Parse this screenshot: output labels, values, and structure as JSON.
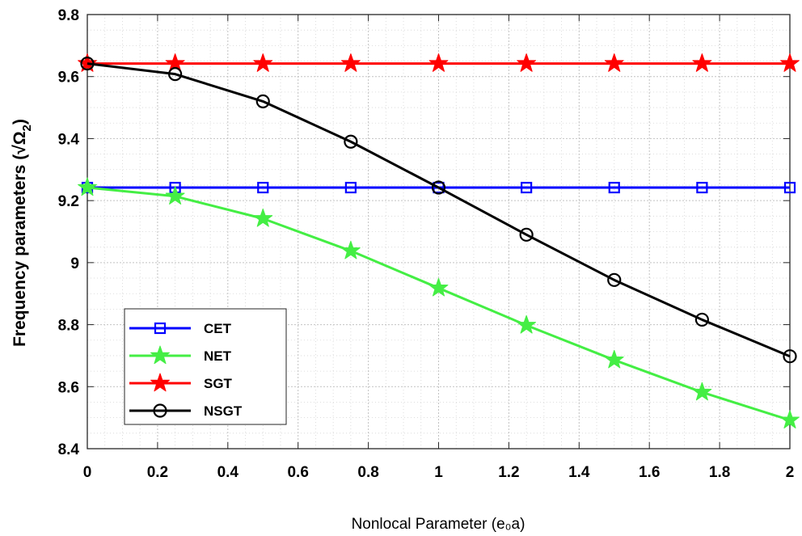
{
  "chart_data": {
    "type": "line",
    "title": "",
    "xlabel": "Nonlocal Parameter (e₀a)",
    "ylabel_main": "Frequency parameters (√Ω",
    "ylabel_sub": "2",
    "ylabel_end": ")",
    "xlim": [
      0,
      2
    ],
    "ylim": [
      8.4,
      9.8
    ],
    "x_ticks": [
      "0",
      "0.2",
      "0.4",
      "0.6",
      "0.8",
      "1",
      "1.2",
      "1.4",
      "1.6",
      "1.8",
      "2"
    ],
    "y_ticks": [
      "8.4",
      "8.6",
      "8.8",
      "9",
      "9.2",
      "9.4",
      "9.6",
      "9.8"
    ],
    "grid": true,
    "minor_grid": true,
    "legend_position": "bottom-left",
    "x": [
      0,
      0.25,
      0.5,
      0.75,
      1.0,
      1.25,
      1.5,
      1.75,
      2.0
    ],
    "series": [
      {
        "name": "CET",
        "color": "#0000ff",
        "marker": "square",
        "values": [
          9.242,
          9.242,
          9.242,
          9.242,
          9.242,
          9.242,
          9.242,
          9.242,
          9.242
        ]
      },
      {
        "name": "NET",
        "color": "#44ee44",
        "marker": "star",
        "values": [
          9.242,
          9.214,
          9.142,
          9.038,
          8.918,
          8.798,
          8.686,
          8.582,
          8.492
        ]
      },
      {
        "name": "SGT",
        "color": "#ff0000",
        "marker": "star",
        "values": [
          9.642,
          9.642,
          9.642,
          9.642,
          9.642,
          9.642,
          9.642,
          9.642,
          9.642
        ]
      },
      {
        "name": "NSGT",
        "color": "#000000",
        "marker": "circle",
        "values": [
          9.642,
          9.608,
          9.52,
          9.39,
          9.242,
          9.09,
          8.944,
          8.816,
          8.698
        ]
      }
    ]
  }
}
